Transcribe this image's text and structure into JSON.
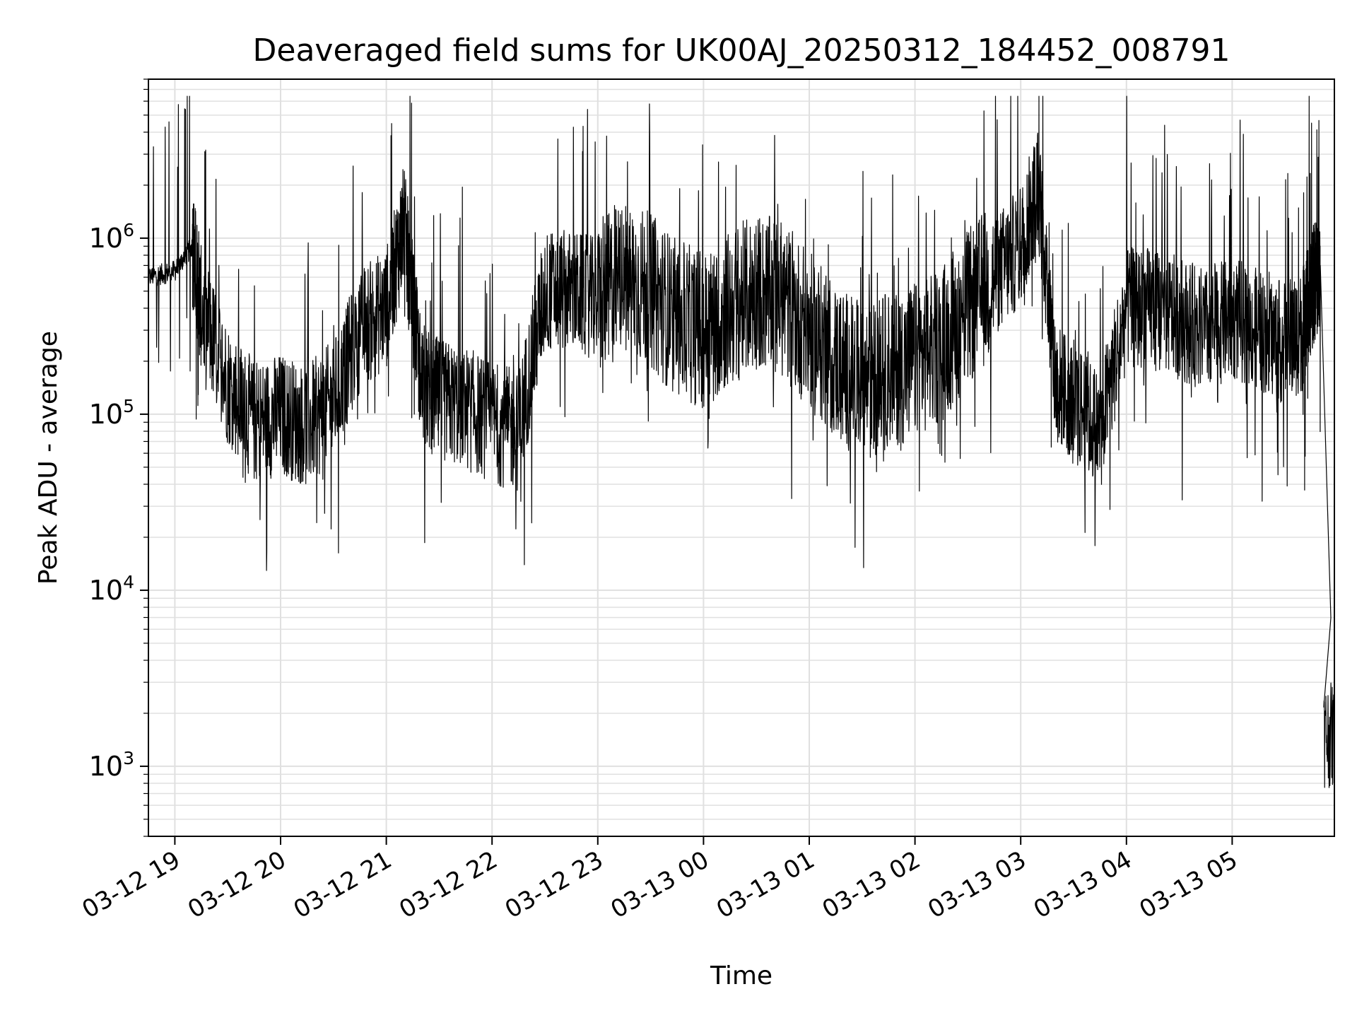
{
  "chart_data": {
    "type": "line",
    "title": "Deaveraged field sums for UK00AJ_20250312_184452_008791",
    "xlabel": "Time",
    "ylabel": "Peak ADU - average",
    "yscale": "log",
    "ylim": [
      400,
      8000000
    ],
    "xlim": [
      "2025-03-12 18:45",
      "2025-03-13 05:58"
    ],
    "grid": true,
    "line_color": "#000000",
    "grid_color": "#e0e0e0",
    "x_ticks": [
      "03-12 19",
      "03-12 20",
      "03-12 21",
      "03-12 22",
      "03-12 23",
      "03-13 00",
      "03-13 01",
      "03-13 02",
      "03-13 03",
      "03-13 04",
      "03-13 05"
    ],
    "y_ticks": [
      {
        "value": 1000,
        "base": "10",
        "exp": "3"
      },
      {
        "value": 10000,
        "base": "10",
        "exp": "4"
      },
      {
        "value": 100000,
        "base": "10",
        "exp": "5"
      },
      {
        "value": 1000000,
        "base": "10",
        "exp": "6"
      }
    ],
    "series": [
      {
        "x": [
          "2025-03-12 18:45",
          "2025-03-12 19:00",
          "2025-03-12 19:10",
          "2025-03-12 19:15",
          "2025-03-12 19:30",
          "2025-03-12 19:45",
          "2025-03-12 20:00",
          "2025-03-12 20:15",
          "2025-03-12 20:30",
          "2025-03-12 20:45",
          "2025-03-12 21:00",
          "2025-03-12 21:10",
          "2025-03-12 21:20",
          "2025-03-12 21:30",
          "2025-03-12 21:45",
          "2025-03-12 22:00",
          "2025-03-12 22:15",
          "2025-03-12 22:30",
          "2025-03-12 22:45",
          "2025-03-12 23:00",
          "2025-03-12 23:15",
          "2025-03-12 23:30",
          "2025-03-12 23:45",
          "2025-03-13 00:00",
          "2025-03-13 00:15",
          "2025-03-13 00:30",
          "2025-03-13 00:45",
          "2025-03-13 01:00",
          "2025-03-13 01:15",
          "2025-03-13 01:30",
          "2025-03-13 01:45",
          "2025-03-13 02:00",
          "2025-03-13 02:15",
          "2025-03-13 02:30",
          "2025-03-13 02:45",
          "2025-03-13 03:00",
          "2025-03-13 03:10",
          "2025-03-13 03:20",
          "2025-03-13 03:30",
          "2025-03-13 03:45",
          "2025-03-13 04:00",
          "2025-03-13 04:15",
          "2025-03-13 04:30",
          "2025-03-13 04:45",
          "2025-03-13 05:00",
          "2025-03-13 05:15",
          "2025-03-13 05:30",
          "2025-03-13 05:40",
          "2025-03-13 05:45",
          "2025-03-13 05:50",
          "2025-03-13 05:58"
        ],
        "y": [
          600000,
          650000,
          900000,
          400000,
          150000,
          90000,
          100000,
          85000,
          120000,
          300000,
          400000,
          1200000,
          150000,
          120000,
          110000,
          90000,
          80000,
          500000,
          500000,
          450000,
          600000,
          500000,
          350000,
          300000,
          400000,
          500000,
          450000,
          300000,
          200000,
          150000,
          180000,
          200000,
          250000,
          400000,
          600000,
          900000,
          2000000,
          150000,
          120000,
          80000,
          400000,
          400000,
          350000,
          300000,
          350000,
          300000,
          250000,
          300000,
          500000,
          700000,
          1500
        ]
      }
    ]
  }
}
